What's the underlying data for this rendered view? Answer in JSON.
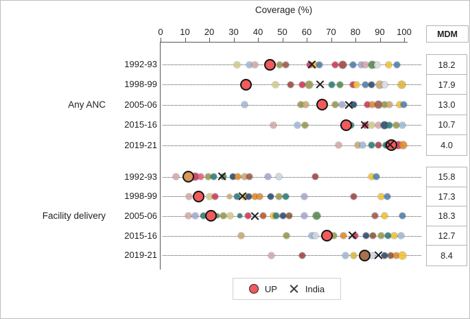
{
  "chart_data": {
    "type": "scatter",
    "title": "Coverage (%)",
    "xlabel": "Coverage (%)",
    "xlim": [
      0,
      100
    ],
    "xticks": [
      0,
      10,
      20,
      30,
      40,
      50,
      60,
      70,
      80,
      90,
      100
    ],
    "grid": "dotted-row-guides",
    "legend_position": "bottom-center",
    "legend": [
      {
        "label": "UP",
        "marker": "circle",
        "color": "#f15b5b"
      },
      {
        "label": "India",
        "marker": "x",
        "color": "#1d1d1d"
      }
    ],
    "mdm_header": "MDM",
    "groups": [
      {
        "label": "Any ANC",
        "rows": [
          {
            "year": "1992-93",
            "mdm": "18.2",
            "up": 45.0,
            "india": 62.0,
            "dots": [
              [
                31.5,
                "#d3cc85"
              ],
              [
                36.5,
                "#9fb8d6"
              ],
              [
                38.8,
                "#d4a8a8"
              ],
              [
                48.8,
                "#97994d"
              ],
              [
                51.5,
                "#9e5a50"
              ],
              [
                61.3,
                "#cf3a5c"
              ],
              [
                63.3,
                "#f2c12e"
              ],
              [
                65.3,
                "#4f7fae"
              ],
              [
                71.8,
                "#cf3a5c"
              ],
              [
                74.8,
                "#a04848",
                11
              ],
              [
                78.9,
                "#4f7fae"
              ],
              [
                82.3,
                "#a3a8d4"
              ],
              [
                84.2,
                "#d4a8a8"
              ],
              [
                86.8,
                "#5a8a50",
                11
              ],
              [
                89.0,
                "#d9dde2"
              ],
              [
                93.8,
                "#f2c12e"
              ],
              [
                97.0,
                "#4f7fae"
              ]
            ]
          },
          {
            "year": "1998-99",
            "mdm": "17.9",
            "up": 35.0,
            "india": 65.4,
            "dots": [
              [
                47.3,
                "#d3cc85"
              ],
              [
                53.5,
                "#a04848"
              ],
              [
                58.3,
                "#cf3a5c"
              ],
              [
                61.0,
                "#97994d",
                11
              ],
              [
                70.4,
                "#2f7d78"
              ],
              [
                73.8,
                "#5a8a50"
              ],
              [
                78.9,
                "#cf3a5c"
              ],
              [
                80.3,
                "#f2c12e"
              ],
              [
                84.2,
                "#4f7fae"
              ],
              [
                86.7,
                "#2f4d72"
              ],
              [
                90.0,
                "#c9a96e",
                11
              ],
              [
                92.0,
                "#d9dde2"
              ],
              [
                99.0,
                "#e0b53a",
                11
              ]
            ]
          },
          {
            "year": "2005-06",
            "mdm": "13.0",
            "up": 66.2,
            "india": 77.2,
            "dots": [
              [
                34.4,
                "#9fb8d6"
              ],
              [
                57.5,
                "#97994d"
              ],
              [
                59.7,
                "#c9a96e"
              ],
              [
                71.8,
                "#97994d"
              ],
              [
                74.4,
                "#a3a8d4"
              ],
              [
                79.4,
                "#2f4d72"
              ],
              [
                85.0,
                "#cf3a5c"
              ],
              [
                87.0,
                "#e28a2e"
              ],
              [
                89.3,
                "#9e5a50",
                11
              ],
              [
                92.0,
                "#97994d"
              ],
              [
                94.0,
                "#c9a96e"
              ],
              [
                98.3,
                "#f2c12e"
              ],
              [
                99.8,
                "#4f7fae"
              ]
            ]
          },
          {
            "year": "2015-16",
            "mdm": "10.7",
            "up": 76.3,
            "india": 83.7,
            "dots": [
              [
                46.2,
                "#d4a8a8"
              ],
              [
                56.3,
                "#9fb8d6"
              ],
              [
                59.2,
                "#97994d"
              ],
              [
                78.3,
                "#2f7d78"
              ],
              [
                84.2,
                "#cf3a5c"
              ],
              [
                86.5,
                "#d3cc85"
              ],
              [
                89.3,
                "#d4a8a8"
              ],
              [
                92.1,
                "#2f4d72",
                11
              ],
              [
                94.0,
                "#2f7d78"
              ],
              [
                96.9,
                "#97994d"
              ],
              [
                99.2,
                "#9fb8d6"
              ]
            ]
          },
          {
            "year": "2019-21",
            "mdm": "4.0",
            "up": 94.9,
            "india": 94.3,
            "dots": [
              [
                73.2,
                "#d4a8a8"
              ],
              [
                81.0,
                "#c9a96e"
              ],
              [
                83.0,
                "#9fb8d6"
              ],
              [
                86.5,
                "#2f7d78"
              ],
              [
                89.5,
                "#a04848"
              ],
              [
                92.5,
                "#2f7d78"
              ],
              [
                93.5,
                "#2f4d72"
              ],
              [
                97.5,
                "#cf3a5c",
                11
              ],
              [
                99.5,
                "#e28a2e",
                11
              ]
            ]
          }
        ]
      },
      {
        "label": "Facility delivery",
        "rows": [
          {
            "year": "1992-93",
            "mdm": "15.8",
            "up": 11.3,
            "india": 25.3,
            "up_color": "#d69a5a",
            "dots": [
              [
                6.2,
                "#d4a8a8"
              ],
              [
                14.3,
                "#cf3a5c",
                11
              ],
              [
                16.6,
                "#e06080"
              ],
              [
                19.7,
                "#97994d"
              ],
              [
                21.7,
                "#2f7d78"
              ],
              [
                25.8,
                "#5a8a50"
              ],
              [
                29.6,
                "#2f4d72"
              ],
              [
                31.8,
                "#e28a2e"
              ],
              [
                34.4,
                "#c9a96e"
              ],
              [
                36.6,
                "#9e5a50"
              ],
              [
                44.0,
                "#a3a8d4"
              ],
              [
                48.7,
                "#c9d6e4"
              ],
              [
                63.4,
                "#a04848"
              ],
              [
                86.5,
                "#f2c12e"
              ],
              [
                88.5,
                "#4f7fae"
              ]
            ]
          },
          {
            "year": "1998-99",
            "mdm": "17.3",
            "up": 15.5,
            "india": 33.8,
            "dots": [
              [
                11.8,
                "#d4a8a8"
              ],
              [
                20.0,
                "#d3cc85"
              ],
              [
                22.4,
                "#cf3a5c"
              ],
              [
                28.2,
                "#c9a96e",
                7
              ],
              [
                31.5,
                "#2f7d78"
              ],
              [
                34.6,
                "#f2c12e"
              ],
              [
                36.3,
                "#2f4d72"
              ],
              [
                38.6,
                "#e28a2e"
              ],
              [
                40.8,
                "#e28a2e"
              ],
              [
                45.1,
                "#2f4d72"
              ],
              [
                48.5,
                "#97994d"
              ],
              [
                51.3,
                "#2f7d78"
              ],
              [
                58.9,
                "#a3a8d4"
              ],
              [
                79.4,
                "#a04848"
              ],
              [
                90.7,
                "#f2c12e"
              ],
              [
                93.0,
                "#4f7fae"
              ]
            ]
          },
          {
            "year": "2005-06",
            "mdm": "18.3",
            "up": 20.6,
            "india": 38.6,
            "dots": [
              [
                11.3,
                "#d4a8a8"
              ],
              [
                14.1,
                "#a3a8d4"
              ],
              [
                17.5,
                "#2f7d78"
              ],
              [
                23.1,
                "#5a8a50",
                7
              ],
              [
                25.9,
                "#97994d"
              ],
              [
                28.7,
                "#d3cc85"
              ],
              [
                32.4,
                "#2f7d78",
                7
              ],
              [
                35.8,
                "#cf3a5c"
              ],
              [
                42.0,
                "#b85c30"
              ],
              [
                46.2,
                "#f2c12e"
              ],
              [
                47.5,
                "#2f7d78"
              ],
              [
                50.4,
                "#2f4d72"
              ],
              [
                52.7,
                "#8a5a3a"
              ],
              [
                58.9,
                "#a3a8d4"
              ],
              [
                64.0,
                "#5a8a50",
                11
              ],
              [
                87.9,
                "#9e5a50"
              ],
              [
                92.1,
                "#f2c12e"
              ],
              [
                99.2,
                "#4f7fae"
              ]
            ]
          },
          {
            "year": "2015-16",
            "mdm": "12.7",
            "up": 68.2,
            "india": 78.6,
            "dots": [
              [
                33.0,
                "#c9a96e"
              ],
              [
                51.8,
                "#97994d"
              ],
              [
                62.0,
                "#9fb8d6"
              ],
              [
                63.5,
                "#c9d6e4"
              ],
              [
                71.0,
                "#97994d"
              ],
              [
                75.2,
                "#e28a2e"
              ],
              [
                79.8,
                "#cf3a5c"
              ],
              [
                84.5,
                "#2f4d72"
              ],
              [
                87.3,
                "#8a5a3a"
              ],
              [
                90.7,
                "#97994d"
              ],
              [
                93.5,
                "#2f7d78"
              ],
              [
                95.8,
                "#f2c12e"
              ],
              [
                98.6,
                "#9fb8d6"
              ]
            ]
          },
          {
            "year": "2019-21",
            "mdm": "8.4",
            "up": 83.7,
            "india": 89.3,
            "up_color": "#a8714f",
            "dots": [
              [
                45.6,
                "#d4a8a8"
              ],
              [
                58.3,
                "#a04848"
              ],
              [
                76.0,
                "#9fb8d6"
              ],
              [
                79.4,
                "#e0b53a"
              ],
              [
                87.0,
                "#c9d6e4"
              ],
              [
                92.1,
                "#2f4d72"
              ],
              [
                94.4,
                "#8a5a3a"
              ],
              [
                96.9,
                "#e28a2e"
              ],
              [
                99.4,
                "#f2c12e",
                11
              ]
            ]
          }
        ]
      }
    ]
  }
}
